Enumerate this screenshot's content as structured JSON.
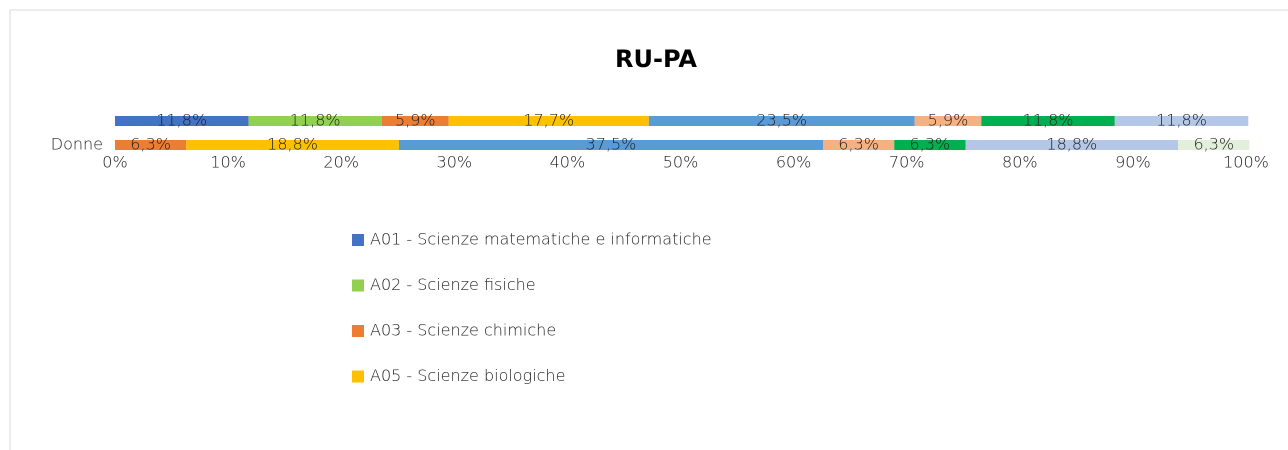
{
  "chart_data": {
    "type": "stacked_bar_100_horizontal",
    "title": "RU-PA",
    "categories": [
      null,
      "Donne"
    ],
    "series": [
      {
        "name": "A01 - Scienze matematiche e informatiche",
        "color": "#4472c4",
        "values": [
          11.8,
          null
        ],
        "value_labels": [
          "11,8%",
          null
        ]
      },
      {
        "name": "A02 - Scienze fisiche",
        "color": "#92d050",
        "values": [
          11.8,
          null
        ],
        "value_labels": [
          "11,8%",
          null
        ]
      },
      {
        "name": "A03 - Scienze chimiche",
        "color": "#ed7d31",
        "values": [
          5.9,
          6.3
        ],
        "value_labels": [
          "5,9%",
          "6,3%"
        ]
      },
      {
        "name": "A05 - Scienze biologiche",
        "color": "#ffc000",
        "values": [
          17.7,
          18.8
        ],
        "value_labels": [
          "17,7%",
          "18,8%"
        ]
      },
      {
        "color": "#5b9bd5",
        "values": [
          23.5,
          37.5
        ],
        "value_labels": [
          "23,5%",
          "37,5%"
        ]
      },
      {
        "color": "#f4b183",
        "values": [
          5.9,
          6.3
        ],
        "value_labels": [
          "5,9%",
          "6,3%"
        ]
      },
      {
        "color": "#00b050",
        "values": [
          11.8,
          6.3
        ],
        "value_labels": [
          "11,8%",
          "6,3%"
        ]
      },
      {
        "color": "#b4c7e7",
        "values": [
          11.8,
          18.8
        ],
        "value_labels": [
          "11,8%",
          "18,8%"
        ]
      },
      {
        "color": "#e2efda",
        "values": [
          null,
          6.3
        ],
        "value_labels": [
          null,
          "6,3%"
        ]
      }
    ],
    "xlim": [
      0,
      100
    ],
    "xticks": [
      {
        "value": 0,
        "label": "0%"
      },
      {
        "value": 10,
        "label": "10%"
      },
      {
        "value": 20,
        "label": "20%"
      },
      {
        "value": 30,
        "label": "30%"
      },
      {
        "value": 40,
        "label": "40%"
      },
      {
        "value": 50,
        "label": "50%"
      },
      {
        "value": 60,
        "label": "60%"
      },
      {
        "value": 70,
        "label": "70%"
      },
      {
        "value": 80,
        "label": "80%"
      },
      {
        "value": 90,
        "label": "90%"
      },
      {
        "value": 100,
        "label": "100%"
      }
    ]
  }
}
